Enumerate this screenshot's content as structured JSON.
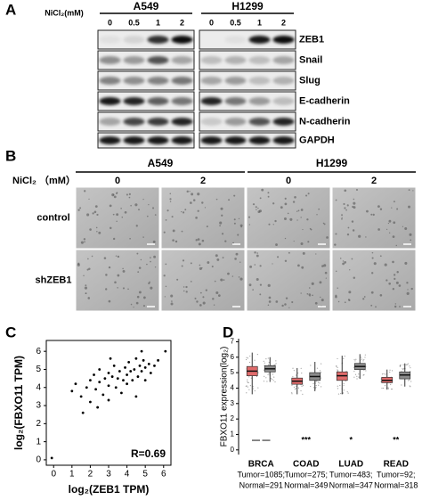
{
  "panel_a": {
    "label": "A",
    "cell_lines": [
      "A549",
      "H1299"
    ],
    "treatment_label": "NiCl₂(mM)",
    "doses": [
      "0",
      "0.5",
      "1",
      "2"
    ],
    "blots": [
      {
        "label": "ZEB1",
        "bands": [
          [
            0.05,
            0.1,
            0.8,
            0.95
          ],
          [
            0,
            0.05,
            0.9,
            0.95
          ]
        ]
      },
      {
        "label": "Snail",
        "bands": [
          [
            0.4,
            0.35,
            0.65,
            0.3
          ],
          [
            0.2,
            0.25,
            0.2,
            0.3
          ]
        ]
      },
      {
        "label": "Slug",
        "bands": [
          [
            0.45,
            0.4,
            0.45,
            0.5
          ],
          [
            0.3,
            0.35,
            0.2,
            0.25
          ]
        ]
      },
      {
        "label": "E-cadherin",
        "bands": [
          [
            0.9,
            0.85,
            0.6,
            0.5
          ],
          [
            0.85,
            0.5,
            0.35,
            0.2
          ]
        ]
      },
      {
        "label": "N-cadherin",
        "bands": [
          [
            0.3,
            0.7,
            0.75,
            0.85
          ],
          [
            0.15,
            0.35,
            0.65,
            0.85
          ]
        ]
      },
      {
        "label": "GAPDH",
        "bands": [
          [
            0.9,
            0.9,
            0.9,
            0.9
          ],
          [
            0.9,
            0.9,
            0.9,
            0.9
          ]
        ]
      }
    ]
  },
  "panel_b": {
    "label": "B",
    "cell_lines": [
      "A549",
      "H1299"
    ],
    "treatment_label": "NiCl₂ （mM）",
    "doses": [
      "0",
      "2",
      "0",
      "2"
    ],
    "rows": [
      "control",
      "shZEB1"
    ]
  },
  "panel_c": {
    "label": "C",
    "chart_data": {
      "type": "scatter",
      "xlabel": "log₂(ZEB1 TPM)",
      "ylabel": "log₂(FBXO11 TPM)",
      "annotation": "R=0.69",
      "xlim": [
        -0.4,
        6.4
      ],
      "ylim": [
        -0.3,
        6.6
      ],
      "xticks": [
        0,
        1,
        2,
        3,
        4,
        5,
        6
      ],
      "yticks": [
        0,
        1,
        2,
        3,
        4,
        5,
        6
      ],
      "color": "#000000",
      "x": [
        -0.1,
        1,
        1.2,
        1.5,
        1.8,
        2,
        2,
        2.2,
        2.3,
        2.5,
        2.5,
        2.7,
        2.8,
        3,
        3,
        3,
        3.2,
        3.3,
        3.4,
        3.5,
        3.6,
        3.7,
        3.8,
        3.9,
        4,
        4,
        4.1,
        4.2,
        4.3,
        4.4,
        4.5,
        4.6,
        4.7,
        4.8,
        4.9,
        5,
        5,
        5.2,
        5.3,
        5.5,
        5.7,
        6.1,
        1.6,
        2.4,
        4.5,
        3.1,
        4.8
      ],
      "y": [
        0.1,
        3.8,
        4.2,
        3.5,
        4.0,
        4.4,
        3.2,
        4.7,
        3.9,
        4.3,
        5.0,
        3.6,
        4.5,
        4.1,
        4.8,
        3.3,
        4.6,
        5.2,
        4.0,
        4.5,
        4.9,
        3.7,
        4.4,
        5.1,
        4.7,
        4.2,
        5.4,
        4.9,
        4.4,
        5.0,
        5.6,
        4.6,
        5.2,
        4.9,
        5.5,
        5.1,
        4.4,
        5.3,
        4.8,
        5.2,
        5.5,
        6.0,
        2.6,
        2.9,
        3.5,
        5.6,
        6.0
      ]
    }
  },
  "panel_d": {
    "label": "D",
    "chart_data": {
      "type": "box",
      "ylabel": "FBXO11 expression(log₂)",
      "ylim": [
        -0.3,
        7.2
      ],
      "yticks": [
        0,
        1,
        2,
        3,
        4,
        5,
        6,
        7
      ],
      "groups": [
        {
          "name": "BRCA",
          "tumor": "Tumor=1085;",
          "normal": "Normal=291",
          "significance": "—  —"
        },
        {
          "name": "COAD",
          "tumor": "Tumor=275;",
          "normal": "Normal=349",
          "significance": "***"
        },
        {
          "name": "LUAD",
          "tumor": "Tumor=483;",
          "normal": "Normal=347",
          "significance": "*"
        },
        {
          "name": "READ",
          "tumor": "Tumor=92;",
          "normal": "Normal=318",
          "significance": "**"
        }
      ],
      "series": [
        {
          "color": "#e06b6b",
          "stats": [
            [
              3.6,
              4.8,
              5.1,
              5.4,
              6.3
            ],
            [
              3.6,
              4.25,
              4.45,
              4.65,
              5.3
            ],
            [
              3.6,
              4.5,
              4.8,
              5.05,
              6.1
            ],
            [
              3.9,
              4.35,
              4.5,
              4.7,
              5.2
            ]
          ]
        },
        {
          "color": "#8c8c8c",
          "stats": [
            [
              4.4,
              5.05,
              5.25,
              5.45,
              6.0
            ],
            [
              3.8,
              4.5,
              4.75,
              5.0,
              5.7
            ],
            [
              4.6,
              5.2,
              5.4,
              5.6,
              6.2
            ],
            [
              4.1,
              4.6,
              4.85,
              5.05,
              5.6
            ]
          ]
        }
      ]
    }
  }
}
